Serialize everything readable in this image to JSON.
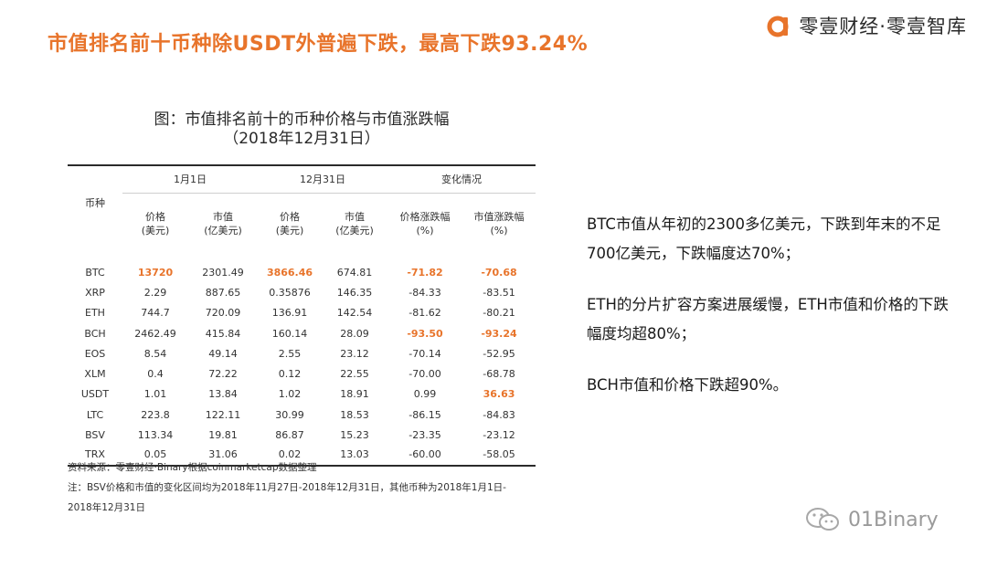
{
  "header": {
    "title": "市值排名前十币种除USDT外普遍下跌，最高下跌93.24%",
    "brand_text": "零壹财经·零壹智库",
    "brand_color": "#e8742b",
    "brand_logo_icon": "brand-a-logo"
  },
  "figure": {
    "caption_line1": "图：市值排名前十的币种价格与市值涨跌幅",
    "caption_line2": "（2018年12月31日）"
  },
  "table": {
    "group_headers": [
      "1月1日",
      "12月31日",
      "变化情况"
    ],
    "code_header": "币种",
    "columns": [
      {
        "line1": "价格",
        "line2": "(美元)"
      },
      {
        "line1": "市值",
        "line2": "(亿美元)"
      },
      {
        "line1": "价格",
        "line2": "(美元)"
      },
      {
        "line1": "市值",
        "line2": "(亿美元)"
      },
      {
        "line1": "价格涨跌幅",
        "line2": "(%)"
      },
      {
        "line1": "市值涨跌幅",
        "line2": "(%)"
      }
    ],
    "rows": [
      {
        "coin": "BTC",
        "p1": "13720",
        "m1": "2301.49",
        "p2": "3866.46",
        "m2": "674.81",
        "pc": "-71.82",
        "mc": "-70.68"
      },
      {
        "coin": "XRP",
        "p1": "2.29",
        "m1": "887.65",
        "p2": "0.35876",
        "m2": "146.35",
        "pc": "-84.33",
        "mc": "-83.51"
      },
      {
        "coin": "ETH",
        "p1": "744.7",
        "m1": "720.09",
        "p2": "136.91",
        "m2": "142.54",
        "pc": "-81.62",
        "mc": "-80.21"
      },
      {
        "coin": "BCH",
        "p1": "2462.49",
        "m1": "415.84",
        "p2": "160.14",
        "m2": "28.09",
        "pc": "-93.50",
        "mc": "-93.24"
      },
      {
        "coin": "EOS",
        "p1": "8.54",
        "m1": "49.14",
        "p2": "2.55",
        "m2": "23.12",
        "pc": "-70.14",
        "mc": "-52.95"
      },
      {
        "coin": "XLM",
        "p1": "0.4",
        "m1": "72.22",
        "p2": "0.12",
        "m2": "22.55",
        "pc": "-70.00",
        "mc": "-68.78"
      },
      {
        "coin": "USDT",
        "p1": "1.01",
        "m1": "13.84",
        "p2": "1.02",
        "m2": "18.91",
        "pc": "0.99",
        "mc": "36.63"
      },
      {
        "coin": "LTC",
        "p1": "223.8",
        "m1": "122.11",
        "p2": "30.99",
        "m2": "18.53",
        "pc": "-86.15",
        "mc": "-84.83"
      },
      {
        "coin": "BSV",
        "p1": "113.34",
        "m1": "19.81",
        "p2": "86.87",
        "m2": "15.23",
        "pc": "-23.35",
        "mc": "-23.12"
      },
      {
        "coin": "TRX",
        "p1": "0.05",
        "m1": "31.06",
        "p2": "0.02",
        "m2": "13.03",
        "pc": "-60.00",
        "mc": "-58.05"
      }
    ],
    "highlight_color": "#e8742b"
  },
  "notes": {
    "source": "资料来源：零壹财经·Binary根据coinmarketcap数据整理",
    "note_line1": "注：BSV价格和市值的变化区间均为2018年11月27日-2018年12月31日，其他币种为2018年1月1日-",
    "note_line2": "2018年12月31日"
  },
  "commentary": {
    "p1": "BTC市值从年初的2300多亿美元，下跌到年末的不足700亿美元，下跌幅度达70%；",
    "p2": "ETH的分片扩容方案进展缓慢，ETH市值和价格的下跌幅度均超80%；",
    "p3": "BCH市值和价格下跌超90%。"
  },
  "watermark": {
    "text": "01Binary",
    "icon": "wechat-icon"
  }
}
